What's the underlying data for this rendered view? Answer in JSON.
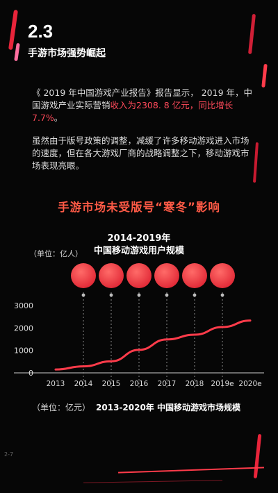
{
  "section": {
    "number": "2.3",
    "title": "手游市场强势崛起"
  },
  "paragraph1": {
    "text_before": "《 2019 年中国游戏产业报告》报告显示， 2019 年，中国游戏产业实际营销",
    "highlight": "收入为2308. 8 亿元，同比增长7.7%",
    "text_after": "。"
  },
  "paragraph2": "虽然由于版号政策的调整，减缓了许多移动游戏进入市场的速度，但在各大游戏厂商的战略调整之下，移动游戏市场表现亮眼。",
  "banner": "手游市场未受版号“寒冬”影响",
  "user_chart": {
    "period": "2014-2019年",
    "title": "中国移动游戏用户规模",
    "unit": "（单位：亿人）"
  },
  "chart_data": {
    "type": "line",
    "x": [
      "2013",
      "2014",
      "2015",
      "2016",
      "2017",
      "2018",
      "2019e",
      "2020e"
    ],
    "series": [
      {
        "values": [
          150,
          290,
          515,
          1025,
          1490,
          1700,
          2040,
          2330
        ]
      }
    ],
    "yticks": [
      "0",
      "1000",
      "2000",
      "3000"
    ],
    "ylim": [
      0,
      3000
    ],
    "ylabel": "",
    "grid": false,
    "color": "#ff3b4a"
  },
  "market_chart": {
    "unit": "（单位：亿元）",
    "title": "2013-2020年 中国移动游戏市场规模"
  },
  "page_number": "2-7",
  "colors": {
    "accent": "#ff3b4a",
    "banner": "#ff5a46",
    "background": "#060606"
  }
}
